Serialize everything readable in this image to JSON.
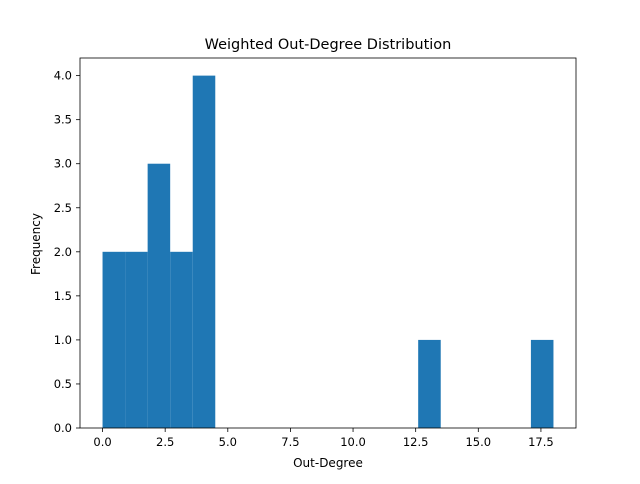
{
  "chart_data": {
    "type": "bar",
    "title": "Weighted Out-Degree Distribution",
    "xlabel": "Out-Degree",
    "ylabel": "Frequency",
    "xlim": [
      -0.9,
      18.9
    ],
    "ylim": [
      0,
      4.2
    ],
    "bar_color": "#1f77b4",
    "bins": [
      {
        "x0": 0.0,
        "x1": 0.9,
        "count": 2
      },
      {
        "x0": 0.9,
        "x1": 1.8,
        "count": 2
      },
      {
        "x0": 1.8,
        "x1": 2.7,
        "count": 3
      },
      {
        "x0": 2.7,
        "x1": 3.6,
        "count": 2
      },
      {
        "x0": 3.6,
        "x1": 4.5,
        "count": 4
      },
      {
        "x0": 4.5,
        "x1": 5.4,
        "count": 0
      },
      {
        "x0": 5.4,
        "x1": 6.3,
        "count": 0
      },
      {
        "x0": 6.3,
        "x1": 7.2,
        "count": 0
      },
      {
        "x0": 7.2,
        "x1": 8.1,
        "count": 0
      },
      {
        "x0": 8.1,
        "x1": 9.0,
        "count": 0
      },
      {
        "x0": 9.0,
        "x1": 9.9,
        "count": 0
      },
      {
        "x0": 9.9,
        "x1": 10.8,
        "count": 0
      },
      {
        "x0": 10.8,
        "x1": 11.7,
        "count": 0
      },
      {
        "x0": 11.7,
        "x1": 12.6,
        "count": 0
      },
      {
        "x0": 12.6,
        "x1": 13.5,
        "count": 1
      },
      {
        "x0": 13.5,
        "x1": 14.4,
        "count": 0
      },
      {
        "x0": 14.4,
        "x1": 15.3,
        "count": 0
      },
      {
        "x0": 15.3,
        "x1": 16.2,
        "count": 0
      },
      {
        "x0": 16.2,
        "x1": 17.1,
        "count": 0
      },
      {
        "x0": 17.1,
        "x1": 18.0,
        "count": 1
      }
    ],
    "x_ticks": [
      {
        "value": 0.0,
        "label": "0.0"
      },
      {
        "value": 2.5,
        "label": "2.5"
      },
      {
        "value": 5.0,
        "label": "5.0"
      },
      {
        "value": 7.5,
        "label": "7.5"
      },
      {
        "value": 10.0,
        "label": "10.0"
      },
      {
        "value": 12.5,
        "label": "12.5"
      },
      {
        "value": 15.0,
        "label": "15.0"
      },
      {
        "value": 17.5,
        "label": "17.5"
      }
    ],
    "y_ticks": [
      {
        "value": 0.0,
        "label": "0.0"
      },
      {
        "value": 0.5,
        "label": "0.5"
      },
      {
        "value": 1.0,
        "label": "1.0"
      },
      {
        "value": 1.5,
        "label": "1.5"
      },
      {
        "value": 2.0,
        "label": "2.0"
      },
      {
        "value": 2.5,
        "label": "2.5"
      },
      {
        "value": 3.0,
        "label": "3.0"
      },
      {
        "value": 3.5,
        "label": "3.5"
      },
      {
        "value": 4.0,
        "label": "4.0"
      }
    ],
    "grid": false,
    "legend": false
  }
}
